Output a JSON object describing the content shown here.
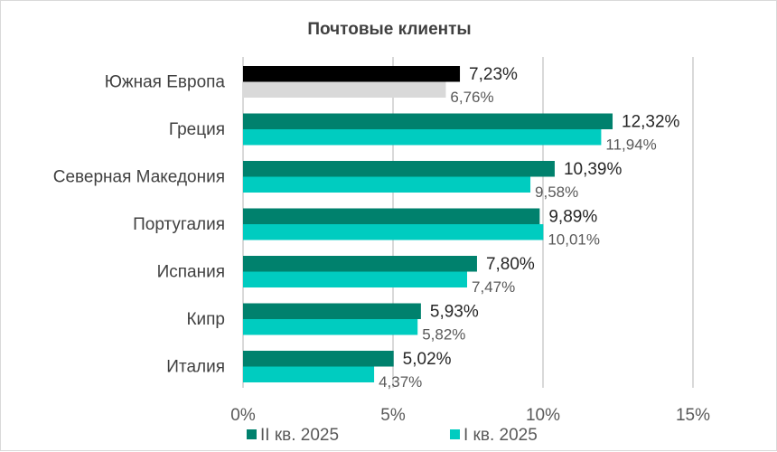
{
  "chart_data": {
    "type": "bar",
    "orientation": "horizontal",
    "title": "Почтовые клиенты",
    "categories": [
      "Южная Европа",
      "Греция",
      "Северная Македония",
      "Португалия",
      "Испания",
      "Кипр",
      "Италия"
    ],
    "series": [
      {
        "name": "II кв. 2025",
        "values": [
          7.23,
          12.32,
          10.39,
          9.89,
          7.8,
          5.93,
          5.02
        ],
        "labels": [
          "7,23%",
          "12,32%",
          "10,39%",
          "9,89%",
          "7,80%",
          "5,93%",
          "5,02%"
        ],
        "color": "#00816d",
        "highlight_color": "#000000"
      },
      {
        "name": "I кв. 2025",
        "values": [
          6.76,
          11.94,
          9.58,
          10.01,
          7.47,
          5.82,
          4.37
        ],
        "labels": [
          "6,76%",
          "11,94%",
          "9,58%",
          "10,01%",
          "7,47%",
          "5,82%",
          "4,37%"
        ],
        "color": "#00ccc0",
        "highlight_color": "#d9d9d9"
      }
    ],
    "xlim": [
      0,
      15
    ],
    "xticks": [
      0,
      5,
      10,
      15
    ],
    "xtick_labels": [
      "0%",
      "5%",
      "10%",
      "15%"
    ],
    "grid": true,
    "legend": "bottom",
    "xlabel": "",
    "ylabel": ""
  }
}
